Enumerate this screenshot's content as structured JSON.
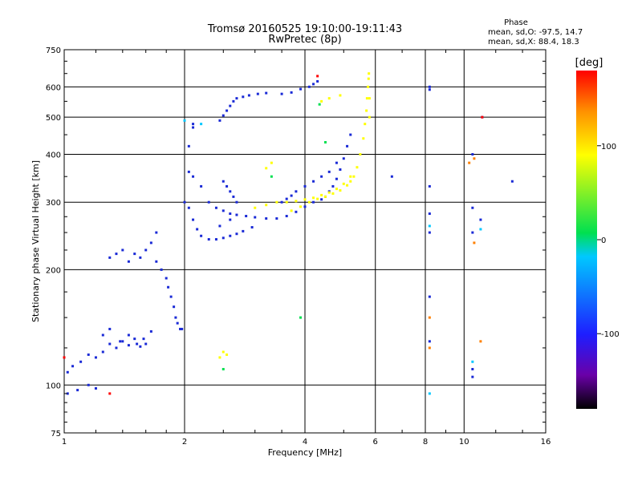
{
  "chart_data": {
    "type": "scatter",
    "title": "Tromsø 20160525 19:10:00-19:11:43",
    "subtitle": "RwPretec (8p)",
    "xlabel": "Frequency [MHz]",
    "ylabel": "Stationary phase Virtual Height [km]",
    "x_scale": "log",
    "y_scale": "log",
    "xlim": [
      1,
      16
    ],
    "ylim": [
      75,
      750
    ],
    "x_ticks": [
      1,
      2,
      4,
      6,
      8,
      10,
      16
    ],
    "x_tick_labels": [
      "1",
      "2",
      "4",
      "6",
      "8",
      "10",
      "16"
    ],
    "y_ticks": [
      75,
      100,
      200,
      300,
      400,
      500,
      600,
      750
    ],
    "y_tick_labels": [
      "75",
      "100",
      "200",
      "300",
      "400",
      "500",
      "600",
      "750"
    ],
    "grid": true,
    "stats": {
      "heading": "Phase",
      "line_o": "mean, sd,O: -97.5, 14.7",
      "line_x": "mean, sd,X:  88.4, 18.3"
    },
    "colorbar": {
      "label": "[deg]",
      "range": [
        -180,
        180
      ],
      "tick_values": [
        100,
        0,
        -100
      ],
      "tick_labels": [
        "100",
        "0",
        "-100"
      ],
      "colors": [
        "#000000",
        "#6a00a8",
        "#1e1eff",
        "#00c8ff",
        "#00e050",
        "#ffff00",
        "#ff9000",
        "#ff0000"
      ]
    },
    "series": [
      {
        "name": "",
        "color": "#1a2ad6",
        "phase_deg": -105,
        "x": [
          1.02,
          1.05,
          1.1,
          1.15,
          1.2,
          1.25,
          1.3,
          1.35,
          1.4,
          1.45,
          1.5,
          1.55,
          1.6,
          1.7,
          1.75,
          1.8,
          1.82,
          1.85,
          1.88,
          1.9,
          1.92,
          1.95,
          1.97,
          2.0,
          2.05,
          2.1,
          2.15,
          2.2,
          2.3,
          2.4,
          2.5,
          2.6,
          2.7,
          2.8,
          2.95,
          2.1,
          2.2,
          2.3,
          2.4,
          2.5,
          2.6,
          2.7,
          2.85,
          3.0,
          3.2,
          3.4,
          3.6,
          3.8,
          4.0,
          4.2,
          4.4,
          4.5,
          4.6,
          4.7,
          4.8,
          4.9,
          5.0,
          5.1,
          5.2,
          4.8,
          4.6,
          4.4,
          4.2,
          4.0,
          3.8,
          3.7,
          3.6,
          3.5,
          1.3,
          1.35,
          1.4,
          1.45,
          1.5,
          1.55,
          1.6,
          1.65,
          1.7,
          1.25,
          1.3,
          1.38,
          1.45,
          1.52,
          1.58,
          1.65,
          2.45,
          2.5,
          2.55,
          2.6,
          2.65,
          2.7,
          2.8,
          2.9,
          3.05,
          3.2,
          3.5,
          3.7,
          3.9,
          4.1,
          4.2,
          4.3,
          2.5,
          2.55,
          2.6,
          2.65,
          2.7,
          2.45,
          2.6,
          2.05,
          2.05,
          2.1,
          2.1,
          1.02,
          1.08,
          1.15,
          1.2
        ],
        "y": [
          108,
          112,
          115,
          120,
          118,
          122,
          128,
          125,
          130,
          127,
          132,
          126,
          128,
          210,
          200,
          190,
          180,
          170,
          160,
          150,
          145,
          140,
          140,
          300,
          290,
          270,
          255,
          245,
          240,
          240,
          242,
          245,
          248,
          252,
          258,
          350,
          330,
          300,
          290,
          285,
          280,
          278,
          276,
          274,
          272,
          272,
          276,
          283,
          292,
          300,
          305,
          310,
          320,
          330,
          345,
          365,
          390,
          420,
          450,
          380,
          360,
          350,
          340,
          330,
          320,
          312,
          306,
          300,
          215,
          220,
          225,
          210,
          220,
          215,
          225,
          235,
          250,
          135,
          140,
          130,
          135,
          128,
          132,
          138,
          490,
          505,
          520,
          535,
          550,
          560,
          565,
          570,
          575,
          578,
          575,
          580,
          592,
          600,
          610,
          620,
          340,
          330,
          320,
          310,
          300,
          260,
          270,
          360,
          420,
          470,
          480,
          95,
          97,
          100,
          98
        ]
      },
      {
        "name": "",
        "color": "#ffff00",
        "phase_deg": 95,
        "x": [
          3.0,
          3.2,
          3.4,
          3.6,
          3.8,
          4.0,
          4.2,
          4.4,
          4.6,
          4.8,
          5.0,
          5.2,
          5.4,
          5.5,
          5.6,
          5.65,
          5.7,
          5.72,
          5.75,
          5.77,
          5.78,
          5.8,
          5.8,
          3.7,
          3.9,
          4.1,
          4.3,
          4.5,
          4.7,
          4.9,
          5.1,
          5.2,
          5.3,
          2.45,
          2.5,
          2.55,
          3.2,
          3.3,
          4.4,
          4.6,
          4.9
        ],
        "y": [
          290,
          295,
          300,
          300,
          302,
          305,
          308,
          313,
          318,
          325,
          335,
          350,
          370,
          400,
          440,
          480,
          520,
          560,
          600,
          630,
          650,
          560,
          500,
          285,
          292,
          300,
          306,
          310,
          316,
          322,
          332,
          340,
          350,
          118,
          122,
          120,
          368,
          380,
          550,
          560,
          570
        ]
      },
      {
        "name": "",
        "color": "#1a2ad6",
        "phase_deg": -105,
        "x": [
          6.6,
          8.2,
          8.2,
          8.2,
          8.2,
          8.2,
          8.2,
          10.5,
          10.5,
          10.5,
          10.5,
          11,
          11.1,
          13.2,
          8.2,
          10.5
        ],
        "y": [
          350,
          600,
          330,
          280,
          250,
          170,
          130,
          400,
          290,
          250,
          110,
          270,
          500,
          340,
          590,
          105
        ]
      },
      {
        "name": "",
        "color": "#00e050",
        "phase_deg": 40,
        "x": [
          3.3,
          4.35,
          4.5,
          2.5,
          3.9
        ],
        "y": [
          350,
          540,
          430,
          110,
          150
        ]
      },
      {
        "name": "",
        "color": "#ff8000",
        "phase_deg": 140,
        "x": [
          8.2,
          8.2,
          10.3,
          10.6,
          11,
          10.6
        ],
        "y": [
          150,
          125,
          380,
          235,
          130,
          390
        ]
      },
      {
        "name": "",
        "color": "#ff0000",
        "phase_deg": 175,
        "x": [
          1.0,
          11.1,
          1.3,
          4.3
        ],
        "y": [
          118,
          500,
          95,
          640
        ]
      },
      {
        "name": "",
        "color": "#00c8ff",
        "phase_deg": 20,
        "x": [
          8.2,
          8.2,
          10.5,
          11,
          2.0,
          2.2
        ],
        "y": [
          260,
          95,
          115,
          255,
          490,
          480
        ]
      }
    ]
  }
}
